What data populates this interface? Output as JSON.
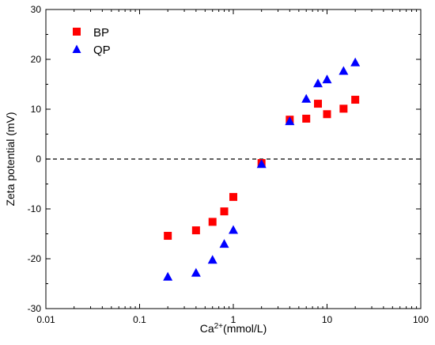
{
  "chart_data": {
    "type": "scatter",
    "xlabel": {
      "base": "Ca",
      "superscript": "2+",
      "suffix": "(mmol/L)"
    },
    "ylabel": "Zeta potential (mV)",
    "xscale": "log",
    "xlim": [
      0.01,
      100
    ],
    "ylim": [
      -30,
      30
    ],
    "xticks": [
      {
        "value": 0.01,
        "label": "0.01"
      },
      {
        "value": 0.1,
        "label": "0.1"
      },
      {
        "value": 1,
        "label": "1"
      },
      {
        "value": 10,
        "label": "10"
      },
      {
        "value": 100,
        "label": "100"
      }
    ],
    "yticks": [
      -30,
      -20,
      -10,
      0,
      10,
      20,
      30
    ],
    "reference_line": {
      "y": 0,
      "style": "dashed"
    },
    "legend_position": "top-left",
    "grid": false,
    "series": [
      {
        "name": "BP",
        "marker": "square",
        "color": "#ff0000",
        "points": [
          [
            0.2,
            -15.4
          ],
          [
            0.4,
            -14.3
          ],
          [
            0.6,
            -12.6
          ],
          [
            0.8,
            -10.5
          ],
          [
            1.0,
            -7.6
          ],
          [
            2.0,
            -0.8
          ],
          [
            4.0,
            7.9
          ],
          [
            6.0,
            8.1
          ],
          [
            8.0,
            11.1
          ],
          [
            10.0,
            9.0
          ],
          [
            15.0,
            10.1
          ],
          [
            20.0,
            11.9
          ]
        ]
      },
      {
        "name": "QP",
        "marker": "triangle",
        "color": "#0000ff",
        "points": [
          [
            0.2,
            -23.6
          ],
          [
            0.4,
            -22.8
          ],
          [
            0.6,
            -20.2
          ],
          [
            0.8,
            -17.0
          ],
          [
            1.0,
            -14.2
          ],
          [
            2.0,
            -1.0
          ],
          [
            4.0,
            7.6
          ],
          [
            6.0,
            12.1
          ],
          [
            8.0,
            15.2
          ],
          [
            10.0,
            16.0
          ],
          [
            15.0,
            17.7
          ],
          [
            20.0,
            19.4
          ]
        ]
      }
    ]
  }
}
